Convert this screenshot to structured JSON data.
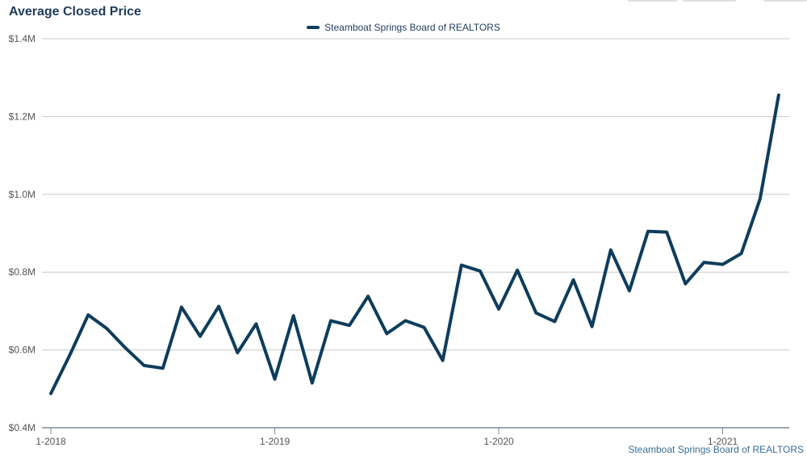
{
  "chart_data": {
    "type": "line",
    "title": "Average Closed Price",
    "source": "Steamboat Springs Board of REALTORS",
    "ylim": [
      400000,
      1400000
    ],
    "y_ticks": [
      400000,
      600000,
      800000,
      1000000,
      1200000,
      1400000
    ],
    "y_tick_labels": [
      "$0.4M",
      "$0.6M",
      "$0.8M",
      "$1.0M",
      "$1.2M",
      "$1.4M"
    ],
    "x_ticks": [
      "2018-01",
      "2019-01",
      "2020-01",
      "2021-01"
    ],
    "x_tick_labels": [
      "1-2018",
      "1-2019",
      "1-2020",
      "1-2021"
    ],
    "grid": true,
    "legend_position": "top-center",
    "colors": {
      "line": "#0e3d5c",
      "grid": "#c8c8c8",
      "axis": "#7b8a9a"
    },
    "series": [
      {
        "name": "Steamboat Springs Board of REALTORS",
        "x": [
          "2018-01",
          "2018-02",
          "2018-03",
          "2018-04",
          "2018-05",
          "2018-06",
          "2018-07",
          "2018-08",
          "2018-09",
          "2018-10",
          "2018-11",
          "2018-12",
          "2019-01",
          "2019-02",
          "2019-03",
          "2019-04",
          "2019-05",
          "2019-06",
          "2019-07",
          "2019-08",
          "2019-09",
          "2019-10",
          "2019-11",
          "2019-12",
          "2020-01",
          "2020-02",
          "2020-03",
          "2020-04",
          "2020-05",
          "2020-06",
          "2020-07",
          "2020-08",
          "2020-09",
          "2020-10",
          "2020-11",
          "2020-12",
          "2021-01",
          "2021-02",
          "2021-03",
          "2021-04"
        ],
        "values": [
          488000,
          585000,
          690000,
          655000,
          605000,
          560000,
          553000,
          710000,
          635000,
          712000,
          593000,
          667000,
          525000,
          688000,
          515000,
          675000,
          663000,
          738000,
          642000,
          675000,
          658000,
          573000,
          818000,
          803000,
          705000,
          805000,
          695000,
          673000,
          780000,
          660000,
          857000,
          752000,
          905000,
          903000,
          770000,
          825000,
          820000,
          848000,
          988000,
          1255000
        ]
      }
    ]
  }
}
